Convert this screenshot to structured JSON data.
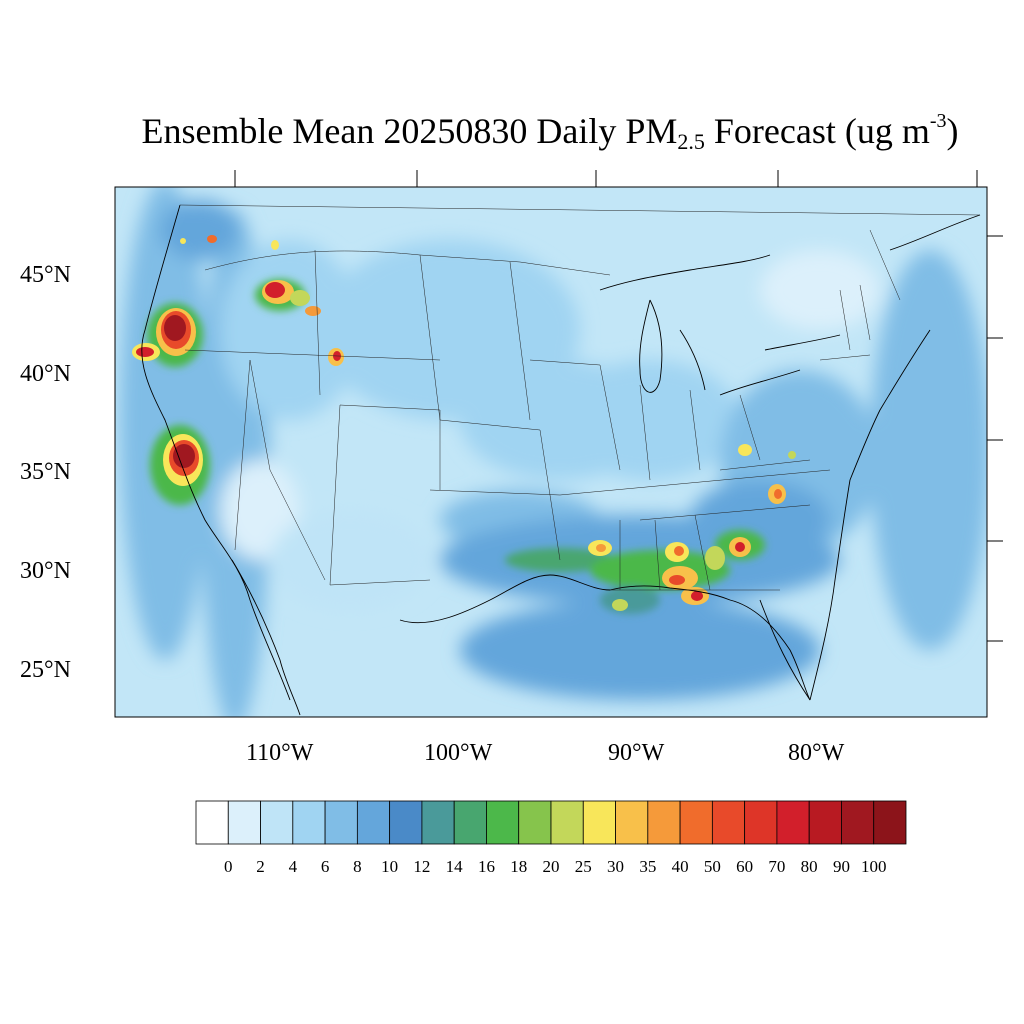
{
  "title": {
    "main": "Ensemble Mean 20250830 Daily PM",
    "sub": "2.5",
    "mid": " Forecast (ug m",
    "sup": "-3",
    "end": ")"
  },
  "map": {
    "lat_labels": [
      "45°N",
      "40°N",
      "35°N",
      "30°N",
      "25°N"
    ],
    "lon_labels": [
      "110°W",
      "100°W",
      "90°W",
      "80°W"
    ],
    "background": "#c2e6f7",
    "border_color": "#000000"
  },
  "hotspots": [
    {
      "name": "southern-oregon-fire",
      "level": 100
    },
    {
      "name": "northern-california-fire",
      "level": 90
    },
    {
      "name": "central-california-fire",
      "level": 100
    },
    {
      "name": "idaho-fire",
      "level": 80
    },
    {
      "name": "montana-fire",
      "level": 40
    },
    {
      "name": "wyoming-fire",
      "level": 50
    },
    {
      "name": "louisiana-plume",
      "level": 25
    },
    {
      "name": "mississippi-alabama-plume",
      "level": 40
    },
    {
      "name": "gulf-coast-hotspot",
      "level": 60
    },
    {
      "name": "georgia-hotspot",
      "level": 70
    },
    {
      "name": "north-carolina-hotspot",
      "level": 35
    }
  ],
  "colorbar": {
    "labels": [
      "0",
      "2",
      "4",
      "6",
      "8",
      "10",
      "12",
      "14",
      "16",
      "18",
      "20",
      "25",
      "30",
      "35",
      "40",
      "50",
      "60",
      "70",
      "80",
      "90",
      "100"
    ],
    "colors": [
      "#ffffff",
      "#dcf0fb",
      "#bfe4f7",
      "#a0d4f2",
      "#80bde6",
      "#64a6db",
      "#4a8ac8",
      "#4a9a9a",
      "#48a66f",
      "#4cb84a",
      "#86c44c",
      "#c3d75a",
      "#f8e65a",
      "#f8c04a",
      "#f59a3a",
      "#f06c2c",
      "#e84a2a",
      "#de3528",
      "#d21f2b",
      "#b81a22",
      "#a01820",
      "#8c141a"
    ]
  }
}
